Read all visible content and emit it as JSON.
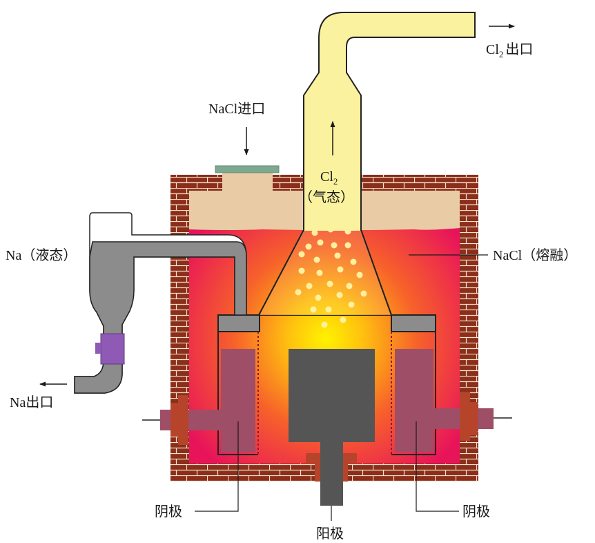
{
  "labels": {
    "cl2_outlet": "出口",
    "nacl_inlet": "NaCl进口",
    "cl2_gas_state": "（气态）",
    "na_liquid": "Na（液态）",
    "nacl_molten": "NaCl（熔融）",
    "na_outlet": "Na出口",
    "cathode_left": "阴极",
    "cathode_right": "阴极",
    "anode": "阳极"
  },
  "formula_cl2": {
    "element": "Cl",
    "subscript": "2"
  },
  "colors": {
    "brick": "#8B2E1A",
    "mortar": "#F2E3D0",
    "molten_bath": "#E8145A",
    "glow_center": "#FFF200",
    "crust": "#E9CBA6",
    "chlorine_gas": "#FAF29E",
    "sodium_liquid": "#8C8C8C",
    "cathode": "#9E4E66",
    "anode": "#555555",
    "collar": "#B5442A",
    "inlet_cap": "#7FA890",
    "valve": "#8E5AB5",
    "bubbles": "#FFF0A0"
  }
}
